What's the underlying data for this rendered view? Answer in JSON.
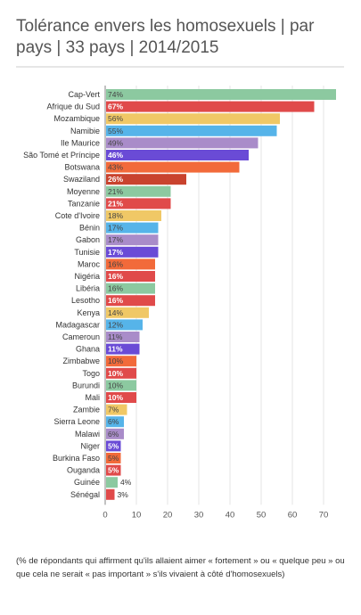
{
  "title": "Tolérance envers les homosexuels | par pays | 33 pays | 2014/2015",
  "note": "(% de répondants qui affirment qu'ils allaient aimer « fortement » ou « quelque peu » ou que cela ne serait « pas important » s'ils vivaient à côté d'homosexuels)",
  "chart_data": {
    "type": "bar",
    "orientation": "horizontal",
    "title": "Tolérance envers les homosexuels | par pays | 33 pays | 2014/2015",
    "categories": [
      "Cap-Vert",
      "Afrique du Sud",
      "Mozambique",
      "Namibie",
      "Ile Maurice",
      "São Tomé et Príncipe",
      "Botswana",
      "Swaziland",
      "Moyenne",
      "Tanzanie",
      "Cote d'Ivoire",
      "Bénin",
      "Gabon",
      "Tunisie",
      "Maroc",
      "Nigéria",
      "Libéria",
      "Lesotho",
      "Kenya",
      "Madagascar",
      "Cameroun",
      "Ghana",
      "Zimbabwe",
      "Togo",
      "Burundi",
      "Mali",
      "Zambie",
      "Sierra Leone",
      "Malawi",
      "Niger",
      "Burkina Faso",
      "Ouganda",
      "Guinée",
      "Sénégal"
    ],
    "values": [
      74,
      67,
      56,
      55,
      49,
      46,
      43,
      26,
      21,
      21,
      18,
      17,
      17,
      17,
      16,
      16,
      16,
      16,
      14,
      12,
      11,
      11,
      10,
      10,
      10,
      10,
      7,
      6,
      6,
      5,
      5,
      5,
      4,
      3
    ],
    "value_labels": [
      "74%",
      "67%",
      "56%",
      "55%",
      "49%",
      "46%",
      "43%",
      "26%",
      "21%",
      "21%",
      "18%",
      "17%",
      "17%",
      "17%",
      "16%",
      "16%",
      "16%",
      "16%",
      "14%",
      "12%",
      "11%",
      "11%",
      "10%",
      "10%",
      "10%",
      "10%",
      "7%",
      "6%",
      "6%",
      "5%",
      "5%",
      "5%",
      "4%",
      "3%"
    ],
    "colors": [
      "#8cc9a0",
      "#e04a4a",
      "#f0c866",
      "#56b4e9",
      "#a98cc9",
      "#6a4bd6",
      "#f26a3a",
      "#c9432e",
      "#8cc9a0",
      "#e04a4a",
      "#f0c866",
      "#56b4e9",
      "#a98cc9",
      "#6a4bd6",
      "#f26a3a",
      "#e04a4a",
      "#8cc9a0",
      "#e04a4a",
      "#f0c866",
      "#56b4e9",
      "#a98cc9",
      "#6a4bd6",
      "#f26a3a",
      "#e04a4a",
      "#8cc9a0",
      "#e04a4a",
      "#f0c866",
      "#56b4e9",
      "#a98cc9",
      "#6a4bd6",
      "#f26a3a",
      "#e04a4a",
      "#8cc9a0",
      "#e04a4a"
    ],
    "dark_label_colors": [
      "#6a4bd6",
      "#e04a4a",
      "#c9432e"
    ],
    "xlim": [
      0,
      76
    ],
    "xticks": [
      0,
      10,
      20,
      30,
      40,
      50,
      60,
      70
    ],
    "xlabel": "",
    "ylabel": "",
    "grid": true,
    "legend": "none"
  }
}
